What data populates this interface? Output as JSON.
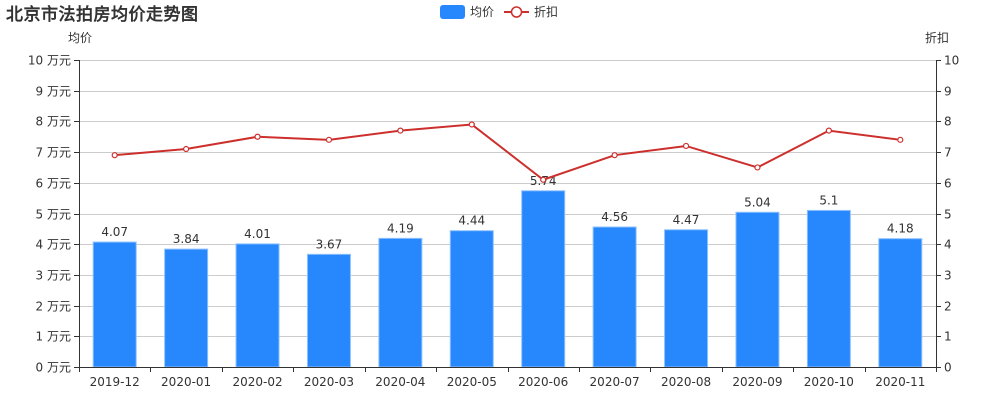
{
  "title": "北京市法拍房均价走势图",
  "legend": [
    {
      "label": "均价",
      "type": "bar",
      "color": "#2787fc"
    },
    {
      "label": "折扣",
      "type": "line",
      "color": "#cc2f2c"
    }
  ],
  "colors": {
    "bar": "#2787fc",
    "bar_border": "#8ec2ff",
    "line": "#cc2f2c",
    "grid": "#cccccc",
    "axis": "#333333"
  },
  "chart_data": {
    "type": "bar+line",
    "title": "北京市法拍房均价走势图",
    "categories": [
      "2019-12",
      "2020-01",
      "2020-02",
      "2020-03",
      "2020-04",
      "2020-05",
      "2020-06",
      "2020-07",
      "2020-08",
      "2020-09",
      "2020-10",
      "2020-11"
    ],
    "series": [
      {
        "name": "均价",
        "type": "bar",
        "axis": "left",
        "values": [
          4.07,
          3.84,
          4.01,
          3.67,
          4.19,
          4.44,
          5.74,
          4.56,
          4.47,
          5.04,
          5.1,
          4.18
        ],
        "labels": [
          "4.07",
          "3.84",
          "4.01",
          "3.67",
          "4.19",
          "4.44",
          "5.74",
          "4.56",
          "4.47",
          "5.04",
          "5.1",
          "4.18"
        ]
      },
      {
        "name": "折扣",
        "type": "line",
        "axis": "right",
        "values": [
          6.9,
          7.1,
          7.5,
          7.4,
          7.7,
          7.9,
          6.1,
          6.9,
          7.2,
          6.5,
          7.7,
          7.4
        ]
      }
    ],
    "left_axis": {
      "name": "均价",
      "ticks": [
        "0 万元",
        "1 万元",
        "2 万元",
        "3 万元",
        "4 万元",
        "5 万元",
        "6 万元",
        "7 万元",
        "8 万元",
        "9 万元",
        "10 万元"
      ],
      "ylim": [
        0,
        10
      ]
    },
    "right_axis": {
      "name": "折扣",
      "ticks": [
        "0",
        "1",
        "2",
        "3",
        "4",
        "5",
        "6",
        "7",
        "8",
        "9",
        "10"
      ],
      "ylim": [
        0,
        10
      ]
    },
    "grid": true,
    "legend_position": "top-center"
  }
}
